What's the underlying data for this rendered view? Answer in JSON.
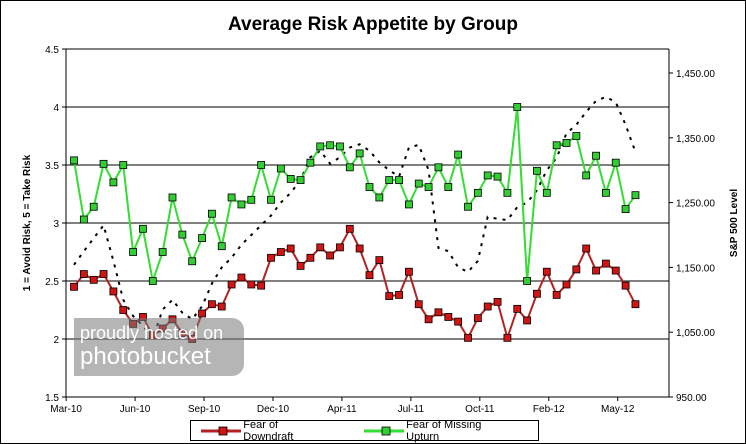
{
  "chart_data": {
    "type": "line",
    "title": "Average Risk Appetite by Group",
    "ylabel": "1 = Avoid Risk, 5 = Take Risk",
    "y2label": "S&P 500 Level",
    "ylim": [
      1.5,
      4.5
    ],
    "y_ticks": [
      "1.5",
      "2",
      "2.5",
      "3",
      "3.5",
      "4",
      "4.5"
    ],
    "y2lim": [
      950,
      1487
    ],
    "y2_ticks": [
      "950.00",
      "1,050.00",
      "1,150.00",
      "1,250.00",
      "1,350.00",
      "1,450.00"
    ],
    "x_tick_labels": [
      "Mar-10",
      "Jun-10",
      "Sep-10",
      "Dec-10",
      "Apr-11",
      "Jul-11",
      "Oct-11",
      "Feb-12",
      "May-12"
    ],
    "grid": "horizontal major",
    "legend_position": "bottom",
    "series": [
      {
        "name": "Fear of Downdraft",
        "color": "#b22222",
        "axis": "left",
        "values": [
          2.45,
          2.56,
          2.51,
          2.56,
          2.41,
          2.25,
          2.13,
          2.19,
          2.03,
          2.09,
          2.17,
          2.05,
          2.0,
          2.22,
          2.3,
          2.28,
          2.47,
          2.53,
          2.47,
          2.46,
          2.7,
          2.75,
          2.78,
          2.63,
          2.7,
          2.79,
          2.72,
          2.79,
          2.95,
          2.78,
          2.55,
          2.68,
          2.37,
          2.38,
          2.58,
          2.3,
          2.17,
          2.23,
          2.19,
          2.15,
          2.01,
          2.18,
          2.28,
          2.32,
          2.01,
          2.26,
          2.16,
          2.39,
          2.58,
          2.38,
          2.47,
          2.6,
          2.78,
          2.59,
          2.65,
          2.59,
          2.46,
          2.3
        ]
      },
      {
        "name": "Fear of Missing Upturn",
        "color": "#33dd33",
        "axis": "left",
        "values": [
          3.54,
          3.03,
          3.14,
          3.51,
          3.35,
          3.5,
          2.75,
          2.95,
          2.5,
          2.75,
          3.22,
          2.9,
          2.67,
          2.87,
          3.08,
          2.8,
          3.22,
          3.16,
          3.2,
          3.5,
          3.2,
          3.47,
          3.38,
          3.37,
          3.52,
          3.66,
          3.67,
          3.66,
          3.48,
          3.6,
          3.31,
          3.22,
          3.37,
          3.37,
          3.16,
          3.34,
          3.31,
          3.48,
          3.31,
          3.59,
          3.14,
          3.26,
          3.41,
          3.4,
          3.26,
          4.0,
          2.5,
          3.45,
          3.26,
          3.67,
          3.69,
          3.75,
          3.41,
          3.58,
          3.26,
          3.52,
          3.12,
          3.24
        ]
      },
      {
        "color": "#000000",
        "axis": "right",
        "style": "dashed",
        "values": [
          1154,
          1175,
          1195,
          1215,
          1160,
          1100,
          1075,
          1060,
          1040,
          1085,
          1100,
          1080,
          1070,
          1090,
          1125,
          1150,
          1165,
          1185,
          1200,
          1215,
          1230,
          1250,
          1265,
          1285,
          1320,
          1330,
          1310,
          1320,
          1335,
          1340,
          1330,
          1312,
          1300,
          1290,
          1335,
          1339,
          1300,
          1180,
          1175,
          1150,
          1143,
          1160,
          1228,
          1225,
          1223,
          1243,
          1250,
          1269,
          1300,
          1319,
          1357,
          1370,
          1390,
          1407,
          1413,
          1405,
          1370,
          1328
        ]
      }
    ]
  },
  "watermark": {
    "line1": "proudly hosted on",
    "line2": "photobucket"
  }
}
